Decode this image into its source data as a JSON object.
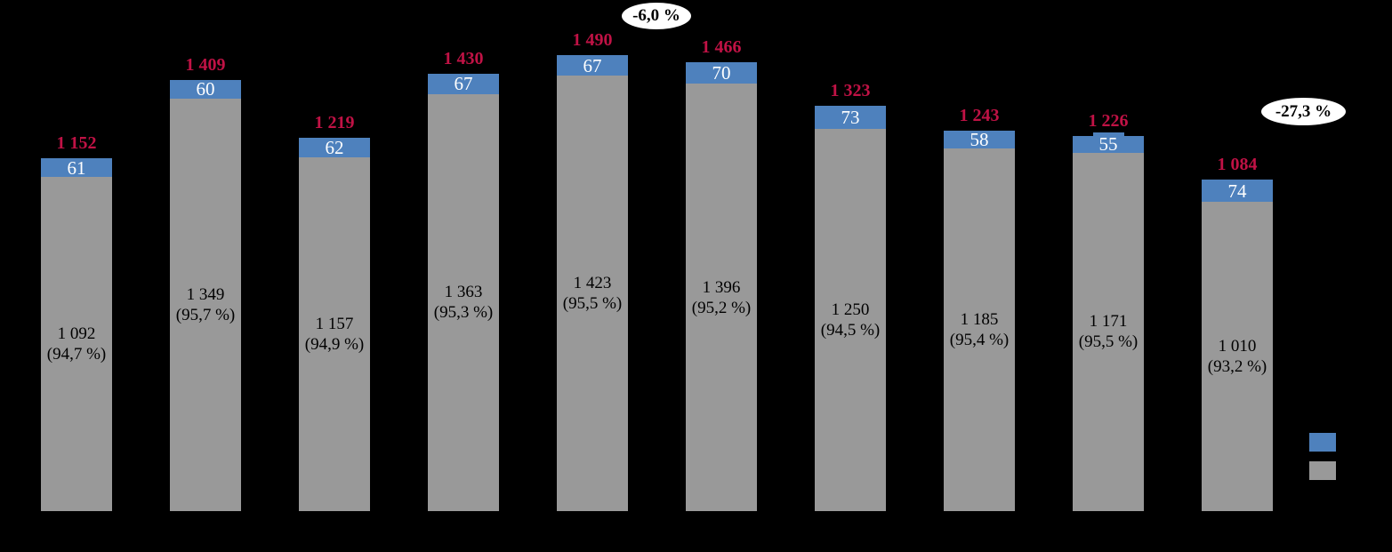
{
  "canvas": {
    "background": "#000000"
  },
  "chart_data": {
    "type": "bar",
    "stacked": true,
    "grid": false,
    "title": "",
    "xlabel": "",
    "ylabel": "",
    "x_tick_labels_visible": false,
    "ylim": [
      0,
      1566
    ],
    "colors": {
      "blue_segment": "#4E81BD",
      "gray_segment": "#999999",
      "total_label": "#C01245",
      "blue_value_text": "#FFFFFF",
      "gray_value_text": "#000000",
      "annotation_fill": "#FFFFFF",
      "annotation_text": "#000000",
      "background": "#000000"
    },
    "series": [
      {
        "name": "blue-top-segment",
        "color": "#4E81BD",
        "values": [
          61,
          60,
          62,
          67,
          67,
          70,
          73,
          58,
          55,
          74
        ],
        "labels": [
          "61",
          "60",
          "62",
          "67",
          "67",
          "70",
          "73",
          "58",
          "55",
          "74"
        ]
      },
      {
        "name": "gray-base-segment",
        "color": "#999999",
        "values": [
          1092,
          1349,
          1157,
          1363,
          1423,
          1396,
          1250,
          1185,
          1171,
          1010
        ],
        "labels": [
          "1 092",
          "1 349",
          "1 157",
          "1 363",
          "1 423",
          "1 396",
          "1 250",
          "1 185",
          "1 171",
          "1 010"
        ],
        "pct_labels": [
          "(94,7 %)",
          "(95,7 %)",
          "(94,9 %)",
          "(95,3 %)",
          "(95,5 %)",
          "(95,2 %)",
          "(94,5 %)",
          "(95,4 %)",
          "(95,5 %)",
          "(93,2 %)"
        ]
      }
    ],
    "totals": {
      "values": [
        1152,
        1409,
        1219,
        1430,
        1490,
        1466,
        1323,
        1243,
        1226,
        1084
      ],
      "labels": [
        "1 152",
        "1 409",
        "1 219",
        "1 430",
        "1 490",
        "1 466",
        "1 323",
        "1 243",
        "1 226",
        "1 084"
      ]
    },
    "annotations": [
      {
        "text": "-6,0 %",
        "anchor": "above gap between bars 5 and 6"
      },
      {
        "text": "-27,3 %",
        "anchor": "right of bar 10, upper area"
      }
    ],
    "legend": {
      "position": "bottom-right",
      "entries": [
        {
          "name": "blue-series-swatch",
          "swatch_color": "#4E81BD"
        },
        {
          "name": "gray-series-swatch",
          "swatch_color": "#999999"
        }
      ]
    }
  }
}
